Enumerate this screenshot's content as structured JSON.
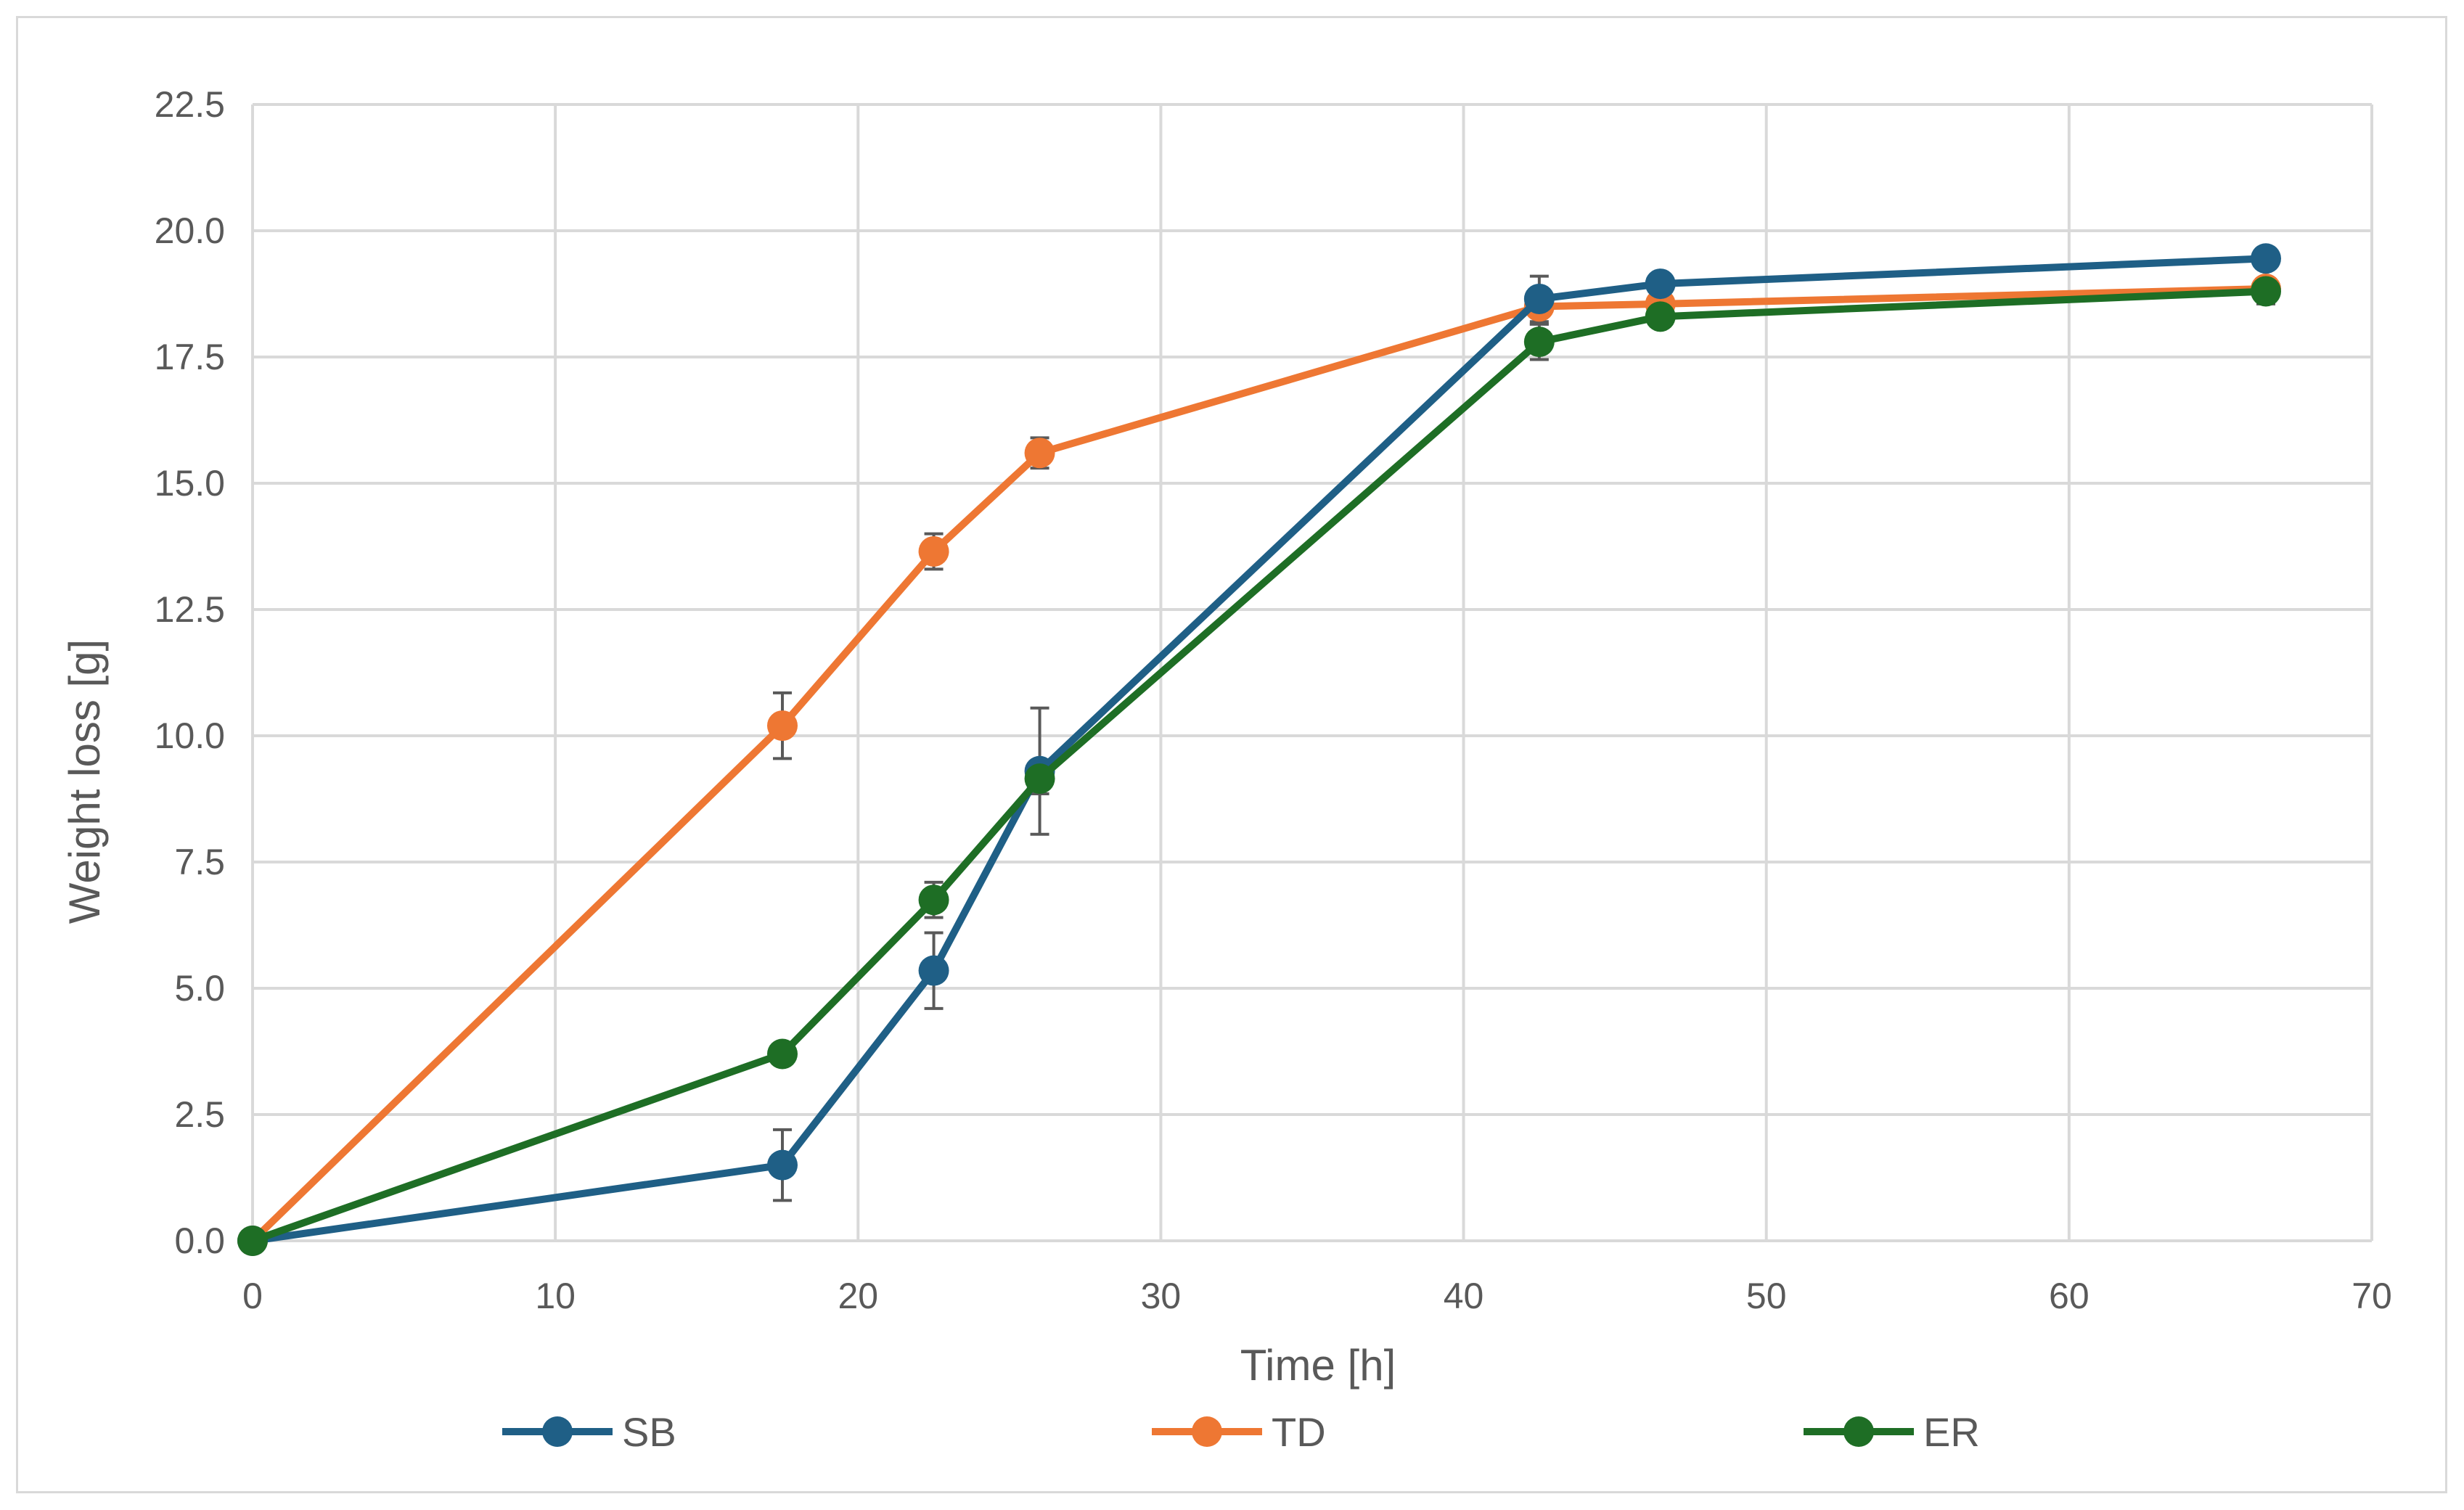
{
  "chart_data": {
    "type": "line",
    "title": "",
    "xlabel": "Time [h]",
    "ylabel": "Weight loss [g]",
    "xlim": [
      0,
      70
    ],
    "ylim": [
      0,
      22.5
    ],
    "xticks": [
      "0",
      "10",
      "20",
      "30",
      "40",
      "50",
      "60",
      "70"
    ],
    "yticks": [
      "0.0",
      "2.5",
      "5.0",
      "7.5",
      "10.0",
      "12.5",
      "15.0",
      "17.5",
      "20.0",
      "22.5"
    ],
    "grid": true,
    "legend_position": "bottom",
    "series": [
      {
        "name": "SB",
        "color": "#1f5f86",
        "x": [
          0,
          17.5,
          22.5,
          26,
          42.5,
          46.5,
          66.5
        ],
        "y": [
          0,
          1.5,
          5.35,
          9.3,
          18.65,
          18.95,
          19.45
        ],
        "err": [
          0,
          0.7,
          0.75,
          1.25,
          0.45,
          0.1,
          0.1
        ]
      },
      {
        "name": "TD",
        "color": "#ee7733",
        "x": [
          0,
          17.5,
          22.5,
          26,
          42.5,
          46.5,
          66.5
        ],
        "y": [
          0,
          10.2,
          13.65,
          15.6,
          18.5,
          18.55,
          18.85
        ],
        "err": [
          0,
          0.65,
          0.35,
          0.3,
          0.35,
          0.1,
          0.1
        ]
      },
      {
        "name": "ER",
        "color": "#1e6e25",
        "x": [
          0,
          17.5,
          22.5,
          26,
          42.5,
          46.5,
          66.5
        ],
        "y": [
          0,
          3.7,
          6.75,
          9.15,
          17.8,
          18.3,
          18.8
        ],
        "err": [
          0,
          0.15,
          0.35,
          0.3,
          0.35,
          0.1,
          0.25
        ]
      }
    ]
  }
}
